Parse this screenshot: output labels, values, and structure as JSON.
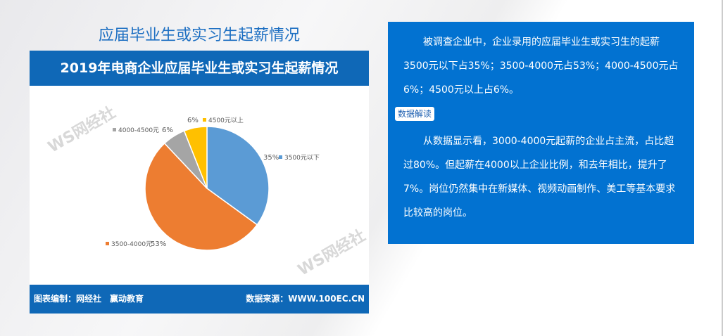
{
  "title": "应届毕业生或实习生起薪情况",
  "chart_data": {
    "type": "pie",
    "title": "2019年电商企业应届毕业生或实习生起薪情况",
    "categories": [
      "3500元以下",
      "3500-4000元",
      "4000-4500元",
      "4500元以上"
    ],
    "values": [
      35,
      53,
      6,
      6
    ],
    "labels": [
      "35%",
      "53%",
      "6%",
      "6%"
    ],
    "colors": [
      "#5b9bd5",
      "#ed7d31",
      "#a5a5a5",
      "#ffc000"
    ]
  },
  "footer": {
    "left": "图表编制：网经社　赢动教育",
    "right": "数据来源：WWW.100EC.CN"
  },
  "watermark": "WS网经社",
  "summary": {
    "paragraph1": "被调查企业中，企业录用的应届毕业生或实习生的起薪3500元以下占35%；3500-4000元占53%；4000-4500元占6%；4500元以上占6%。",
    "badge": "数据解读",
    "paragraph2": "从数据显示看，3000-4000元起薪的企业占主流，占比超过80%。但起薪在4000以上企业比例，和去年相比，提升了7%。岗位仍然集中在新媒体、视频动画制作、美工等基本要求比较高的岗位。"
  }
}
